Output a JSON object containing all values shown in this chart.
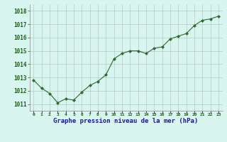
{
  "x": [
    0,
    1,
    2,
    3,
    4,
    5,
    6,
    7,
    8,
    9,
    10,
    11,
    12,
    13,
    14,
    15,
    16,
    17,
    18,
    19,
    20,
    21,
    22,
    23
  ],
  "y": [
    1012.8,
    1012.2,
    1011.8,
    1011.1,
    1011.4,
    1011.3,
    1011.9,
    1012.4,
    1012.7,
    1013.2,
    1014.4,
    1014.8,
    1015.0,
    1015.0,
    1014.8,
    1015.2,
    1015.3,
    1015.9,
    1016.1,
    1016.3,
    1016.9,
    1017.3,
    1017.4,
    1017.6
  ],
  "line_color": "#2d6a2d",
  "marker_color": "#2d6a2d",
  "bg_color": "#d8f5ef",
  "grid_color": "#b8c8c8",
  "xlabel": "Graphe pression niveau de la mer (hPa)",
  "xlabel_color": "#1a1a8c",
  "ylim_min": 1010.5,
  "ylim_max": 1018.5,
  "yticks": [
    1011,
    1012,
    1013,
    1014,
    1015,
    1016,
    1017,
    1018
  ],
  "xtick_labels": [
    "0",
    "1",
    "2",
    "3",
    "4",
    "5",
    "6",
    "7",
    "8",
    "9",
    "10",
    "11",
    "12",
    "13",
    "14",
    "15",
    "16",
    "17",
    "18",
    "19",
    "20",
    "21",
    "22",
    "23"
  ]
}
